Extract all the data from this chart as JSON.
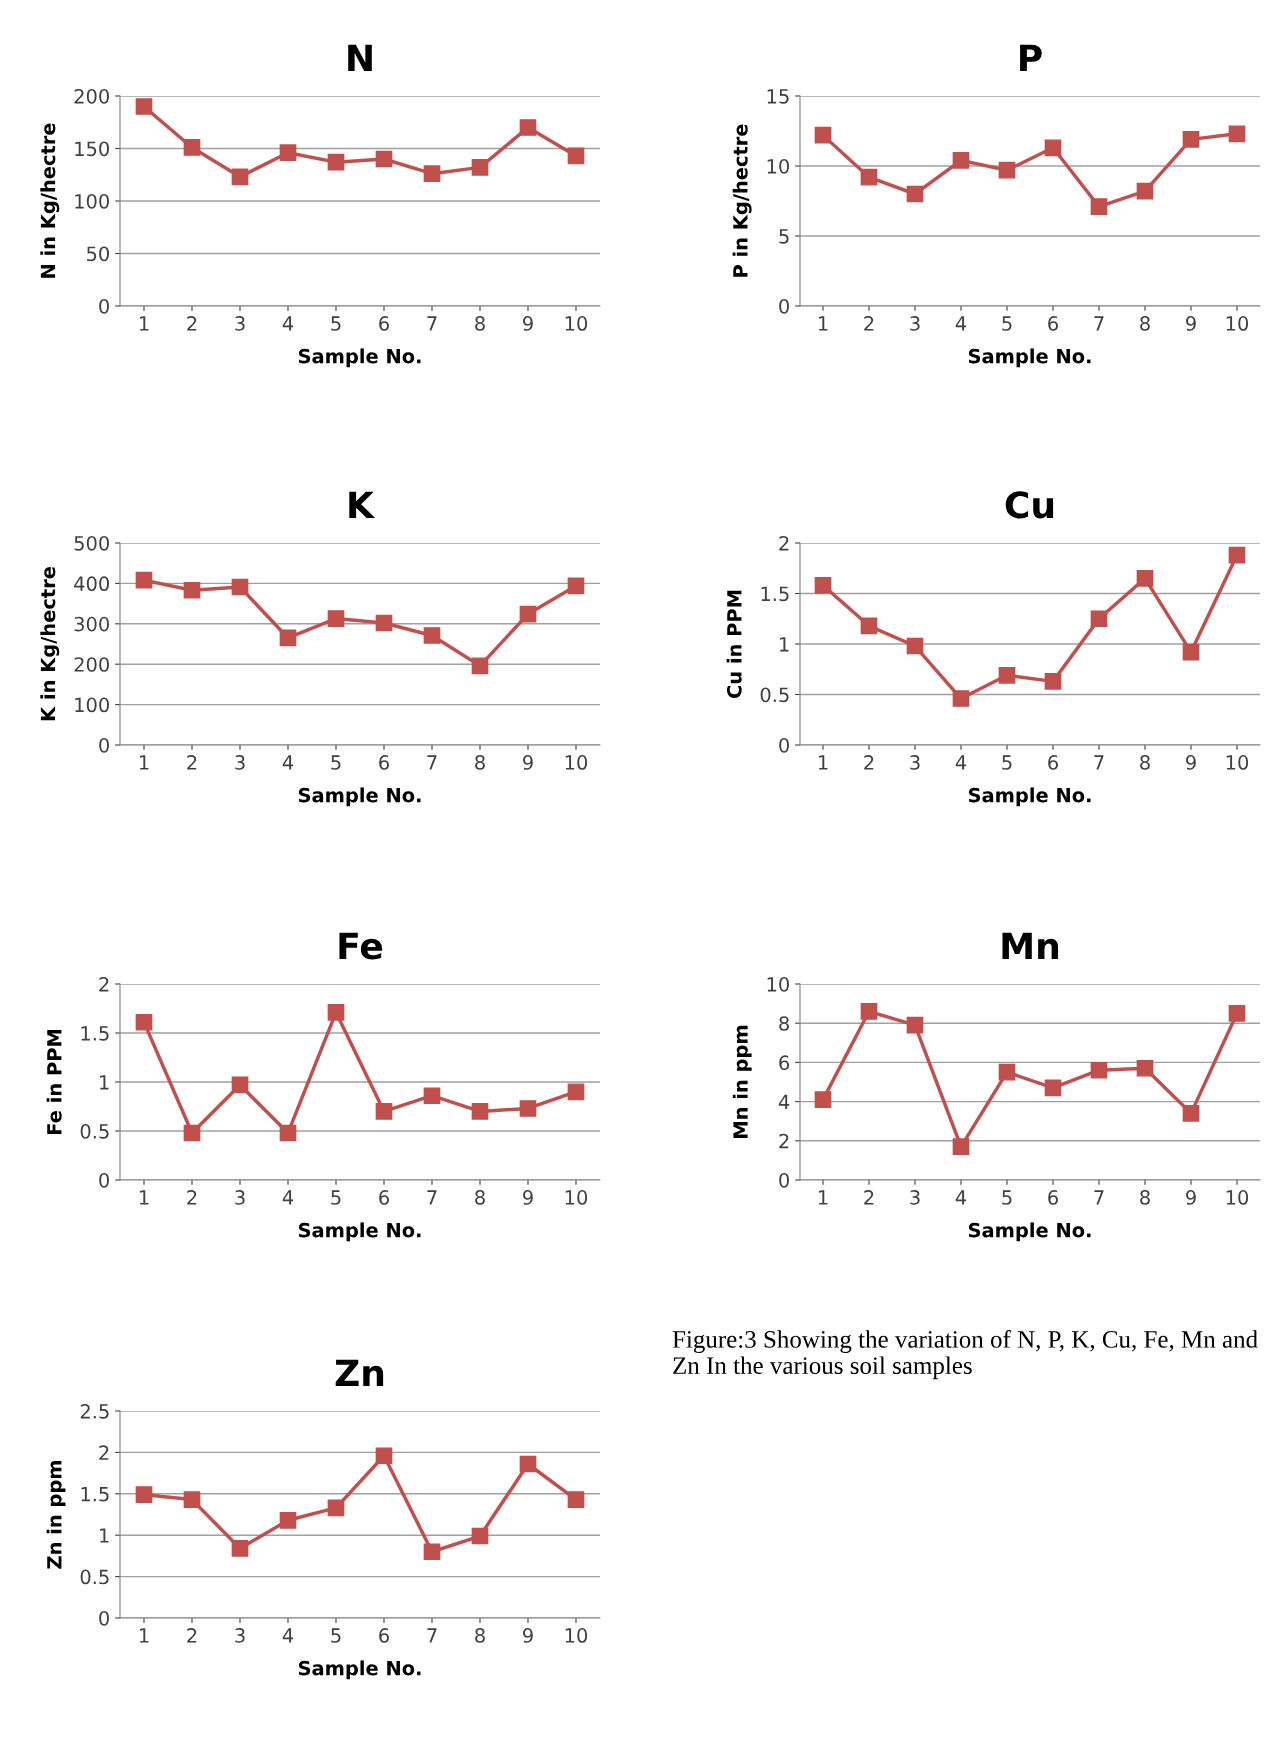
{
  "chart_data": [
    {
      "type": "line",
      "title": "N",
      "xlabel": "Sample No.",
      "ylabel": "N in Kg/hectre",
      "categories": [
        "1",
        "2",
        "3",
        "4",
        "5",
        "6",
        "7",
        "8",
        "9",
        "10"
      ],
      "series": [
        {
          "color": "#c0504d",
          "values": [
            190,
            151,
            123,
            146,
            137,
            140,
            126,
            132,
            170,
            143
          ]
        }
      ],
      "ylim": [
        0,
        200
      ],
      "yticks": [
        0,
        50,
        100,
        150,
        200
      ],
      "grid": "y",
      "marker": "square",
      "line_style": "solid"
    },
    {
      "type": "line",
      "title": "P",
      "xlabel": "Sample No.",
      "ylabel": "P in Kg/hectre",
      "categories": [
        "1",
        "2",
        "3",
        "4",
        "5",
        "6",
        "7",
        "8",
        "9",
        "10"
      ],
      "series": [
        {
          "color": "#c0504d",
          "values": [
            12.2,
            9.2,
            8.0,
            10.4,
            9.7,
            11.3,
            7.1,
            8.2,
            11.9,
            12.3
          ]
        }
      ],
      "ylim": [
        0,
        15
      ],
      "yticks": [
        0,
        5,
        10,
        15
      ],
      "grid": "y",
      "marker": "square",
      "line_style": "solid"
    },
    {
      "type": "line",
      "title": "K",
      "xlabel": "Sample No.",
      "ylabel": "K in Kg/hectre",
      "categories": [
        "1",
        "2",
        "3",
        "4",
        "5",
        "6",
        "7",
        "8",
        "9",
        "10"
      ],
      "series": [
        {
          "color": "#c0504d",
          "values": [
            408,
            383,
            391,
            265,
            313,
            302,
            271,
            196,
            324,
            394
          ]
        }
      ],
      "ylim": [
        0,
        500
      ],
      "yticks": [
        0,
        100,
        200,
        300,
        400,
        500
      ],
      "grid": "y",
      "marker": "square",
      "line_style": "solid"
    },
    {
      "type": "line",
      "title": "Cu",
      "xlabel": "Sample No.",
      "ylabel": "Cu in PPM",
      "categories": [
        "1",
        "2",
        "3",
        "4",
        "5",
        "6",
        "7",
        "8",
        "9",
        "10"
      ],
      "series": [
        {
          "color": "#c0504d",
          "values": [
            1.58,
            1.18,
            0.98,
            0.46,
            0.69,
            0.63,
            1.25,
            1.65,
            0.92,
            1.88
          ]
        }
      ],
      "ylim": [
        0,
        2
      ],
      "yticks": [
        0,
        0.5,
        1,
        1.5,
        2
      ],
      "grid": "y",
      "marker": "square",
      "line_style": "solid"
    },
    {
      "type": "line",
      "title": "Fe",
      "xlabel": "Sample No.",
      "ylabel": "Fe in PPM",
      "categories": [
        "1",
        "2",
        "3",
        "4",
        "5",
        "6",
        "7",
        "8",
        "9",
        "10"
      ],
      "series": [
        {
          "color": "#c0504d",
          "values": [
            1.61,
            0.48,
            0.97,
            0.48,
            1.71,
            0.7,
            0.86,
            0.7,
            0.73,
            0.9
          ]
        }
      ],
      "ylim": [
        0,
        2
      ],
      "yticks": [
        0,
        0.5,
        1,
        1.5,
        2
      ],
      "grid": "y",
      "marker": "square",
      "line_style": "solid"
    },
    {
      "type": "line",
      "title": "Mn",
      "xlabel": "Sample No.",
      "ylabel": "Mn in ppm",
      "categories": [
        "1",
        "2",
        "3",
        "4",
        "5",
        "6",
        "7",
        "8",
        "9",
        "10"
      ],
      "series": [
        {
          "color": "#c0504d",
          "values": [
            4.1,
            8.6,
            7.9,
            1.7,
            5.5,
            4.7,
            5.6,
            5.7,
            3.4,
            8.5
          ]
        }
      ],
      "ylim": [
        0,
        10
      ],
      "yticks": [
        0,
        2,
        4,
        6,
        8,
        10
      ],
      "grid": "y",
      "marker": "square",
      "line_style": "solid"
    },
    {
      "type": "line",
      "title": "Zn",
      "xlabel": "Sample No.",
      "ylabel": "Zn in ppm",
      "categories": [
        "1",
        "2",
        "3",
        "4",
        "5",
        "6",
        "7",
        "8",
        "9",
        "10"
      ],
      "series": [
        {
          "color": "#c0504d",
          "values": [
            1.49,
            1.43,
            0.84,
            1.18,
            1.33,
            1.96,
            0.8,
            0.99,
            1.86,
            1.43
          ]
        }
      ],
      "ylim": [
        0,
        2.5
      ],
      "yticks": [
        0,
        0.5,
        1,
        1.5,
        2,
        2.5
      ],
      "grid": "y",
      "marker": "square",
      "line_style": "solid"
    },
    {
      "type": "other",
      "annotations": [
        "Figure:3 Showing the variation of N, P, K, Cu, Fe, Mn and Zn In the various soil samples"
      ]
    }
  ]
}
